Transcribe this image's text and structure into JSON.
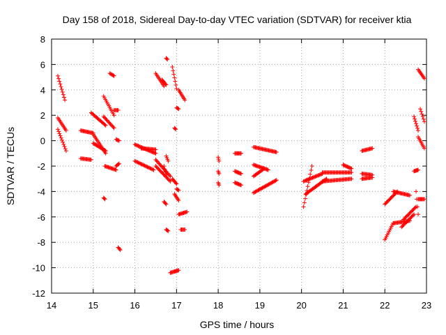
{
  "chart_data": {
    "type": "scatter",
    "title": "Day 158 of 2018, Sidereal Day-to-day VTEC variation (SDTVAR) for receiver ktia",
    "xlabel": "GPS time / hours",
    "ylabel": "SDTVAR / TECUs",
    "xlim": [
      14,
      23
    ],
    "ylim": [
      -12,
      8
    ],
    "x_ticks": [
      14,
      15,
      16,
      17,
      18,
      19,
      20,
      21,
      22,
      23
    ],
    "y_ticks": [
      -12,
      -10,
      -8,
      -6,
      -4,
      -2,
      0,
      2,
      4,
      6,
      8
    ],
    "x_tick_labels": [
      "14",
      "15",
      "16",
      "17",
      "18",
      "19",
      "20",
      "21",
      "22",
      "23"
    ],
    "y_tick_labels": [
      "-12",
      "-10",
      "-8",
      "-6",
      "-4",
      "-2",
      "0",
      "2",
      "4",
      "6",
      "8"
    ],
    "grid": true,
    "marker": "+",
    "color": "#ff0000",
    "segments": [
      {
        "x": [
          14.15,
          14.32
        ],
        "y": [
          5.1,
          3.2
        ]
      },
      {
        "x": [
          14.15,
          14.35
        ],
        "y": [
          1.8,
          0.8
        ]
      },
      {
        "x": [
          14.15,
          14.35
        ],
        "y": [
          0.9,
          -0.8
        ]
      },
      {
        "x": [
          14.7,
          14.95
        ],
        "y": [
          -1.4,
          -1.5
        ]
      },
      {
        "x": [
          14.7,
          15.0
        ],
        "y": [
          0.8,
          0.6
        ]
      },
      {
        "x": [
          14.95,
          15.3
        ],
        "y": [
          2.2,
          1.2
        ]
      },
      {
        "x": [
          15.0,
          15.3
        ],
        "y": [
          0.5,
          -1.0
        ]
      },
      {
        "x": [
          15.0,
          15.3
        ],
        "y": [
          -0.2,
          -0.8
        ]
      },
      {
        "x": [
          15.25,
          15.5
        ],
        "y": [
          3.5,
          2.0
        ]
      },
      {
        "x": [
          15.25,
          15.5
        ],
        "y": [
          1.9,
          1.0
        ]
      },
      {
        "x": [
          15.28,
          15.55
        ],
        "y": [
          -2.0,
          -2.3
        ]
      },
      {
        "x": [
          15.5,
          15.6
        ],
        "y": [
          2.4,
          2.4
        ]
      },
      {
        "x": [
          15.4,
          15.5
        ],
        "y": [
          5.3,
          5.1
        ]
      },
      {
        "x": [
          15.55,
          15.62
        ],
        "y": [
          -2.0,
          -1.8
        ]
      },
      {
        "x": [
          15.55,
          15.62
        ],
        "y": [
          0.1,
          0.0
        ]
      },
      {
        "x": [
          15.6,
          15.65
        ],
        "y": [
          -8.4,
          -8.6
        ]
      },
      {
        "x": [
          15.25,
          15.28
        ],
        "y": [
          -4.5,
          -4.6
        ]
      },
      {
        "x": [
          16.0,
          16.45
        ],
        "y": [
          -1.6,
          -2.3
        ]
      },
      {
        "x": [
          16.0,
          16.5
        ],
        "y": [
          -0.3,
          -1.0
        ]
      },
      {
        "x": [
          16.15,
          16.5
        ],
        "y": [
          -0.6,
          -0.7
        ]
      },
      {
        "x": [
          16.5,
          16.85
        ],
        "y": [
          -2.0,
          -3.2
        ]
      },
      {
        "x": [
          16.5,
          16.85
        ],
        "y": [
          -1.5,
          -2.8
        ]
      },
      {
        "x": [
          16.5,
          16.7
        ],
        "y": [
          5.3,
          4.3
        ]
      },
      {
        "x": [
          16.65,
          16.75
        ],
        "y": [
          4.8,
          4.4
        ]
      },
      {
        "x": [
          16.9,
          17.0
        ],
        "y": [
          5.8,
          4.1
        ]
      },
      {
        "x": [
          16.75,
          16.8
        ],
        "y": [
          -1.2,
          -1.6
        ]
      },
      {
        "x": [
          16.75,
          16.78
        ],
        "y": [
          6.5,
          6.4
        ]
      },
      {
        "x": [
          16.7,
          16.75
        ],
        "y": [
          -2.0,
          -2.7
        ]
      },
      {
        "x": [
          16.9,
          17.0
        ],
        "y": [
          -3.0,
          -3.4
        ]
      },
      {
        "x": [
          16.95,
          17.05
        ],
        "y": [
          -4.2,
          -4.7
        ]
      },
      {
        "x": [
          16.7,
          16.75
        ],
        "y": [
          -4.8,
          -5.0
        ]
      },
      {
        "x": [
          16.75,
          16.8
        ],
        "y": [
          -7.0,
          -7.1
        ]
      },
      {
        "x": [
          16.85,
          16.95
        ],
        "y": [
          -10.4,
          -10.3
        ]
      },
      {
        "x": [
          16.95,
          17.05
        ],
        "y": [
          -10.3,
          -10.2
        ]
      },
      {
        "x": [
          17.0,
          17.05
        ],
        "y": [
          2.6,
          2.5
        ]
      },
      {
        "x": [
          17.05,
          17.2
        ],
        "y": [
          4.0,
          3.2
        ]
      },
      {
        "x": [
          16.95,
          16.98
        ],
        "y": [
          1.0,
          0.9
        ]
      },
      {
        "x": [
          17.05,
          17.25
        ],
        "y": [
          -5.8,
          -5.6
        ]
      },
      {
        "x": [
          17.1,
          17.2
        ],
        "y": [
          -7.0,
          -7.0
        ]
      },
      {
        "x": [
          17.0,
          17.05
        ],
        "y": [
          -3.8,
          -3.9
        ]
      },
      {
        "x": [
          18.0,
          18.02
        ],
        "y": [
          -1.3,
          -1.6
        ]
      },
      {
        "x": [
          18.0,
          18.02
        ],
        "y": [
          -2.4,
          -2.6
        ]
      },
      {
        "x": [
          18.0,
          18.02
        ],
        "y": [
          -3.3,
          -3.5
        ]
      },
      {
        "x": [
          18.4,
          18.55
        ],
        "y": [
          -1.0,
          -1.0
        ]
      },
      {
        "x": [
          18.4,
          18.55
        ],
        "y": [
          -2.4,
          -2.6
        ]
      },
      {
        "x": [
          18.4,
          18.55
        ],
        "y": [
          -3.3,
          -3.5
        ]
      },
      {
        "x": [
          18.85,
          19.4
        ],
        "y": [
          -0.5,
          -0.9
        ]
      },
      {
        "x": [
          18.85,
          19.2
        ],
        "y": [
          -1.9,
          -2.3
        ]
      },
      {
        "x": [
          18.85,
          19.1
        ],
        "y": [
          -2.8,
          -2.2
        ]
      },
      {
        "x": [
          18.85,
          19.4
        ],
        "y": [
          -4.1,
          -3.1
        ]
      },
      {
        "x": [
          20.05,
          20.25
        ],
        "y": [
          -5.2,
          -2.0
        ]
      },
      {
        "x": [
          20.05,
          20.5
        ],
        "y": [
          -3.2,
          -2.6
        ]
      },
      {
        "x": [
          20.1,
          20.6
        ],
        "y": [
          -4.2,
          -3.0
        ]
      },
      {
        "x": [
          20.5,
          21.2
        ],
        "y": [
          -2.5,
          -2.5
        ]
      },
      {
        "x": [
          20.5,
          21.2
        ],
        "y": [
          -3.2,
          -3.0
        ]
      },
      {
        "x": [
          21.0,
          21.2
        ],
        "y": [
          -1.9,
          -2.2
        ]
      },
      {
        "x": [
          21.45,
          21.7
        ],
        "y": [
          -0.8,
          -0.6
        ]
      },
      {
        "x": [
          21.45,
          21.7
        ],
        "y": [
          -2.6,
          -2.7
        ]
      },
      {
        "x": [
          21.45,
          21.7
        ],
        "y": [
          -3.0,
          -2.9
        ]
      },
      {
        "x": [
          22.0,
          22.2
        ],
        "y": [
          -7.8,
          -6.5
        ]
      },
      {
        "x": [
          22.0,
          22.3
        ],
        "y": [
          -5.0,
          -4.0
        ]
      },
      {
        "x": [
          22.2,
          22.6
        ],
        "y": [
          -4.0,
          -4.3
        ]
      },
      {
        "x": [
          22.2,
          22.6
        ],
        "y": [
          -6.5,
          -6.3
        ]
      },
      {
        "x": [
          22.4,
          22.7
        ],
        "y": [
          -6.8,
          -5.8
        ]
      },
      {
        "x": [
          22.45,
          22.75
        ],
        "y": [
          -6.2,
          -5.2
        ]
      },
      {
        "x": [
          22.7,
          22.8
        ],
        "y": [
          -2.4,
          -2.3
        ]
      },
      {
        "x": [
          22.8,
          22.95
        ],
        "y": [
          -4.6,
          -4.6
        ]
      },
      {
        "x": [
          22.8,
          22.95
        ],
        "y": [
          5.6,
          4.9
        ]
      },
      {
        "x": [
          22.85,
          22.95
        ],
        "y": [
          2.5,
          1.5
        ]
      },
      {
        "x": [
          22.7,
          22.8
        ],
        "y": [
          1.9,
          0.8
        ]
      },
      {
        "x": [
          22.8,
          22.95
        ],
        "y": [
          0.3,
          -0.6
        ]
      },
      {
        "x": [
          22.75,
          22.8
        ],
        "y": [
          -4.0,
          -5.8
        ]
      }
    ]
  }
}
